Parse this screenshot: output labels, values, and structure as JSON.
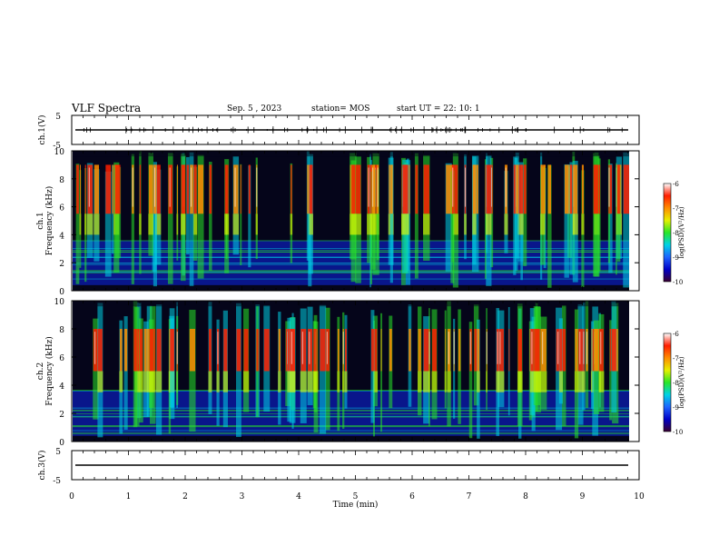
{
  "header": {
    "title": "VLF Spectra",
    "date": "Sep. 5 , 2023",
    "station": "station= MOS",
    "start": "start UT = 22: 10: 1"
  },
  "chart_data": [
    {
      "type": "line",
      "panel": "ch1-waveform",
      "ylabel": "ch.1(V)",
      "yticks": [
        "5",
        "-5"
      ],
      "ylim": [
        -5,
        5
      ],
      "xlim": [
        0,
        10
      ],
      "series": [
        {
          "values_note_level_V": 0
        }
      ]
    },
    {
      "type": "heatmap",
      "panel": "ch1-spectrogram",
      "ylabel": "ch.1\nFrequency (kHz)",
      "ylabel_line1": "ch.1",
      "ylabel_line2": "Frequency (kHz)",
      "ylim": [
        0,
        10
      ],
      "yticks": [
        "0",
        "2",
        "4",
        "6",
        "8",
        "10"
      ],
      "xlim": [
        0,
        10
      ],
      "colorbar": {
        "label": "log(PSD)(V²/Hz)",
        "ticks": [
          "-6",
          "-7",
          "-8",
          "-9",
          "-10"
        ],
        "range": [
          -10,
          -6
        ]
      },
      "dominant_band_kHz": [
        5.5,
        9.0
      ],
      "burst_count_approx": 90
    },
    {
      "type": "heatmap",
      "panel": "ch2-spectrogram",
      "ylabel_line1": "ch.2",
      "ylabel_line2": "Frequency (kHz)",
      "ylim": [
        0,
        10
      ],
      "yticks": [
        "0",
        "2",
        "4",
        "6",
        "8",
        "10"
      ],
      "xlim": [
        0,
        10
      ],
      "colorbar": {
        "label": "log(PSD)(V²/Hz)",
        "ticks": [
          "-6",
          "-7",
          "-8",
          "-9",
          "-10"
        ],
        "range": [
          -10,
          -6
        ]
      },
      "dominant_band_kHz": [
        5.0,
        8.0
      ],
      "burst_count_approx": 90
    },
    {
      "type": "line",
      "panel": "ch3-waveform",
      "ylabel": "ch.3(V)",
      "yticks": [
        "5",
        "-5"
      ],
      "ylim": [
        -5,
        5
      ],
      "xlim": [
        0,
        10
      ],
      "xlabel": "Time (min)",
      "xticks": [
        "0",
        "1",
        "2",
        "3",
        "4",
        "5",
        "6",
        "7",
        "8",
        "9",
        "10"
      ]
    }
  ],
  "colors": {
    "axis": "#000000",
    "colormap": [
      "#3a0030",
      "#0000c8",
      "#1e64ff",
      "#00d2e6",
      "#28e628",
      "#e6f000",
      "#ff8c00",
      "#ff1e00",
      "#ffffff"
    ]
  }
}
